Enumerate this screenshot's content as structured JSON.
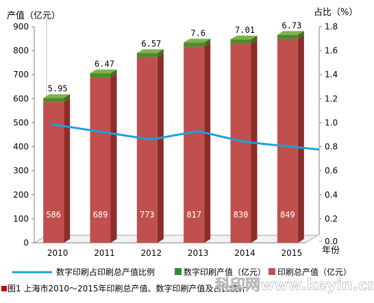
{
  "chart_data": {
    "type": "bar",
    "categories": [
      "2010",
      "2011",
      "2012",
      "2013",
      "2014",
      "2015"
    ],
    "series": [
      {
        "name": "印刷总产值（亿元）",
        "type": "bar",
        "axis": "left",
        "values": [
          586,
          689,
          773,
          817,
          830,
          849
        ],
        "color": "#c0504d"
      },
      {
        "name": "数字印刷产值（亿元）",
        "type": "bar",
        "axis": "left",
        "values": [
          5.95,
          6.47,
          6.57,
          7.6,
          7.01,
          6.73
        ],
        "color": "#4f8a2c"
      },
      {
        "name": "数字印刷占印刷总产值比例",
        "type": "line",
        "axis": "right",
        "values": [
          0.98,
          0.92,
          0.86,
          0.93,
          0.84,
          0.8
        ],
        "color": "#1aa0dc"
      }
    ],
    "bar_top_labels": [
      "5.95",
      "6.47",
      "6.57",
      "7.6",
      "7.01",
      "6.73"
    ],
    "bar_inner_labels": [
      "586",
      "689",
      "773",
      "817",
      "830",
      "849"
    ],
    "ylabel_left": "产值（亿元）",
    "ylabel_right": "占比（%）",
    "xlabel": "年份",
    "yticks_left": [
      "0",
      "100",
      "200",
      "300",
      "400",
      "500",
      "600",
      "700",
      "800",
      "900"
    ],
    "yticks_right": [
      "0.0",
      "0.2",
      "0.4",
      "0.6",
      "0.8",
      "1.0",
      "1.2",
      "1.4",
      "1.6",
      "1.8"
    ],
    "ylim_left": [
      0,
      900
    ],
    "ylim_right": [
      0,
      1.8
    ],
    "legend_position": "bottom",
    "grid": false
  },
  "legend": {
    "line": "数字印刷占印刷总产值比例",
    "digital": "数字印刷产值（亿元）",
    "total": "印刷总产值（亿元）"
  },
  "caption": "图1  上海市2010～2015年印刷总产值、数字印刷产值及占比统计",
  "watermark": "科印网www.keyin.cn",
  "colors": {
    "bar_front": "#c0504d",
    "bar_side": "#8b2e2b",
    "bar_top": "#d98b88",
    "cap_front": "#4f8a2c",
    "cap_top": "#7fb24a",
    "line": "#1aa0dc",
    "caption_marker": "#c00000"
  }
}
